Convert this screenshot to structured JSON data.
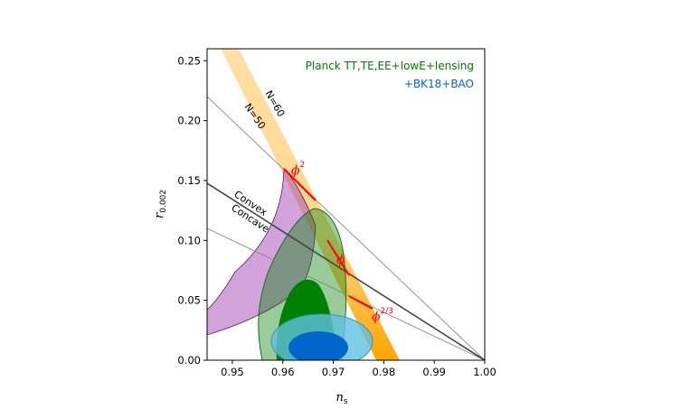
{
  "chart_data": {
    "type": "contour",
    "xlabel": {
      "main": "n",
      "sub": "s"
    },
    "ylabel": {
      "main": "r",
      "sub": "0.002"
    },
    "xlim": [
      0.945,
      1.0
    ],
    "ylim": [
      0.0,
      0.26
    ],
    "xticks": [
      "0.95",
      "0.96",
      "0.97",
      "0.98",
      "0.99",
      "1.00"
    ],
    "yticks": [
      "0.00",
      "0.05",
      "0.10",
      "0.15",
      "0.20",
      "0.25"
    ],
    "legend": {
      "placement": "top-right",
      "entries": [
        {
          "label": "Planck TT,TE,EE+lowE+lensing",
          "color": "#008000"
        },
        {
          "label": "+BK18+BAO",
          "color": "#0066cc"
        }
      ]
    },
    "lines": [
      {
        "label": "N=60",
        "x": [
          0.9435,
          0.9825
        ],
        "y": [
          0.26,
          0.0
        ]
      },
      {
        "label": "N=50",
        "x": [
          0.9445,
          0.9755
        ],
        "y": [
          0.22,
          0.0
        ]
      },
      {
        "label_above": "Convex",
        "label_below": "Concave",
        "x": [
          0.945,
          1.0
        ],
        "y": [
          0.147,
          0.0
        ]
      },
      {
        "x": [
          0.945,
          1.0
        ],
        "y": [
          0.22,
          0.0
        ]
      },
      {
        "x": [
          0.945,
          1.0
        ],
        "y": [
          0.11,
          0.0
        ]
      }
    ],
    "predictions": [
      {
        "label": "ϕ",
        "exp": "2",
        "x": 0.9667,
        "y": 0.133
      },
      {
        "label": "ϕ",
        "exp": "",
        "x": 0.975,
        "y": 0.067
      },
      {
        "label": "ϕ",
        "exp": "2/3",
        "x": 0.978,
        "y": 0.044
      }
    ],
    "contours": [
      {
        "name": "Planck 68%",
        "center": [
          0.9655,
          0.032
        ]
      },
      {
        "name": "Planck 95%",
        "center": [
          0.9655,
          0.055
        ]
      },
      {
        "name": "BK18+BAO 68%",
        "center": [
          0.9668,
          0.018
        ]
      },
      {
        "name": "BK18+BAO 95%",
        "center": [
          0.9668,
          0.018
        ]
      }
    ],
    "colors": {
      "nband": "#ffa500",
      "purple": "#9b30b0",
      "planck": "#008000",
      "bk18": "#0066cc",
      "phi": "#ff0000"
    }
  }
}
